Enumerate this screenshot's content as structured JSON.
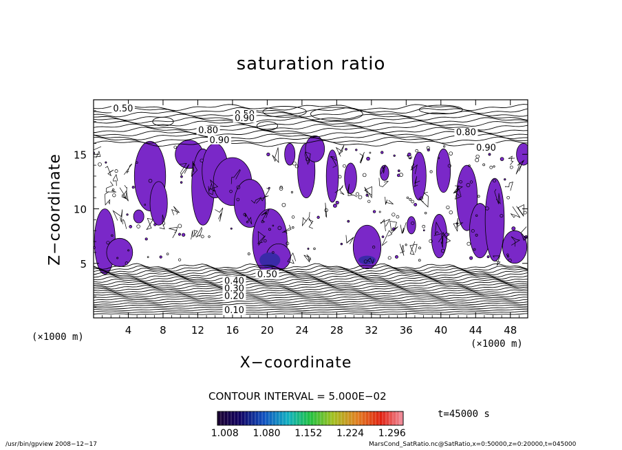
{
  "chart_data": {
    "type": "heatmap",
    "title": "saturation ratio",
    "xlabel": "X−coordinate",
    "ylabel": "Z−coordinate",
    "x_unit": "(×1000 m)",
    "xlim": [
      0,
      50
    ],
    "ylim": [
      0,
      20
    ],
    "x_ticks": [
      4,
      8,
      12,
      16,
      20,
      24,
      28,
      32,
      36,
      40,
      44,
      48
    ],
    "y_ticks": [
      5,
      10,
      15
    ],
    "contour_interval": "CONTOUR INTERVAL = 5.000E−02",
    "contour_labels": [
      {
        "text": "0.50",
        "x": 3.4,
        "z": 19.0
      },
      {
        "text": "0.50",
        "x": 17.4,
        "z": 18.5
      },
      {
        "text": "0.90",
        "x": 17.4,
        "z": 18.1
      },
      {
        "text": "0.80",
        "x": 13.2,
        "z": 17.0
      },
      {
        "text": "0.90",
        "x": 14.5,
        "z": 16.1
      },
      {
        "text": "0.80",
        "x": 42.9,
        "z": 16.8
      },
      {
        "text": "0.90",
        "x": 45.2,
        "z": 15.4
      },
      {
        "text": "0.50",
        "x": 20.0,
        "z": 3.8
      },
      {
        "text": "0.40",
        "x": 16.2,
        "z": 3.2
      },
      {
        "text": "0.30",
        "x": 16.2,
        "z": 2.5
      },
      {
        "text": "0.20",
        "x": 16.2,
        "z": 1.8
      },
      {
        "text": "0.10",
        "x": 16.2,
        "z": 0.5
      }
    ],
    "colorbar": {
      "ticks": [
        "1.008",
        "1.080",
        "1.152",
        "1.224",
        "1.296"
      ],
      "range": [
        1.0,
        1.32
      ]
    },
    "time_label": "t=45000 s"
  },
  "footer": {
    "left": "/usr/bin/gpview   2008−12−17",
    "right": "MarsCond_SatRatio.nc@SatRatio,x=0:50000,z=0:20000,t=045000"
  }
}
